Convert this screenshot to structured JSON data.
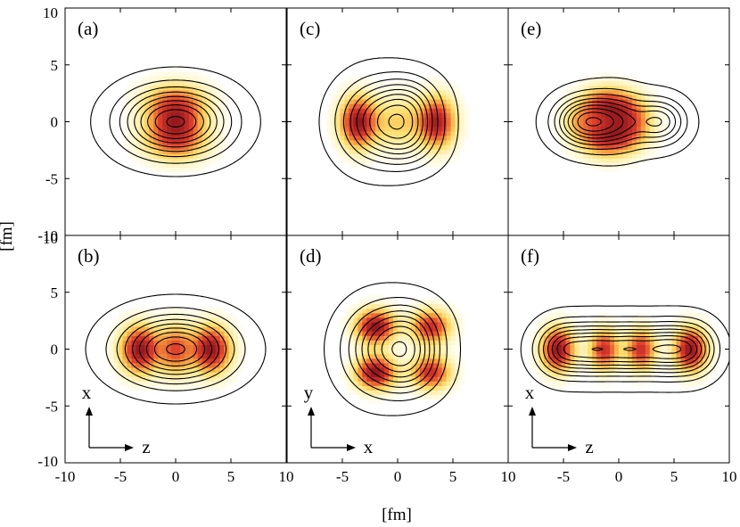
{
  "figure": {
    "xlabel": "[fm]",
    "ylabel": "[fm]"
  },
  "chart_data": [
    {
      "type": "heatmap",
      "panel_label": "(a)",
      "xlim": [
        -10,
        10
      ],
      "ylim": [
        -10,
        10
      ],
      "xticks": [
        "-10",
        "-5",
        "0",
        "5",
        "10"
      ],
      "yticks": [
        "-10",
        "-5",
        "0",
        "5",
        "10"
      ],
      "density": [
        {
          "x": 0,
          "y": 1.6,
          "sx": 1.9,
          "sy": 1.2,
          "w": 0.85
        },
        {
          "x": 0,
          "y": -1.6,
          "sx": 1.9,
          "sy": 1.2,
          "w": 0.85
        },
        {
          "x": 0,
          "y": 0,
          "sx": 1.6,
          "sy": 1.0,
          "w": 0.55
        }
      ],
      "contours": [
        {
          "x": -1.6,
          "y": 0,
          "sx": 2.6,
          "sy": 1.9,
          "w": 1
        },
        {
          "x": 1.6,
          "y": 0,
          "sx": 2.6,
          "sy": 1.9,
          "w": 1
        }
      ],
      "axes_marker": null
    },
    {
      "type": "heatmap",
      "panel_label": "(b)",
      "xlim": [
        -10,
        10
      ],
      "ylim": [
        -10,
        10
      ],
      "xticks": [
        "-10",
        "-5",
        "0",
        "5",
        "10"
      ],
      "yticks": [
        "-10",
        "-5",
        "0",
        "5",
        "10"
      ],
      "density": [
        {
          "x": -3.2,
          "y": 0,
          "sx": 1.2,
          "sy": 1.4,
          "w": 1
        },
        {
          "x": 3.2,
          "y": 0,
          "sx": 1.2,
          "sy": 1.4,
          "w": 1
        },
        {
          "x": 0,
          "y": 0,
          "sx": 1.0,
          "sy": 1.5,
          "w": 0.65
        }
      ],
      "contours": [
        {
          "x": -1.6,
          "y": 0,
          "sx": 2.8,
          "sy": 1.9,
          "w": 1
        },
        {
          "x": 1.6,
          "y": 0,
          "sx": 2.8,
          "sy": 1.9,
          "w": 1
        }
      ],
      "axes_marker": {
        "vertical": "x",
        "horizontal": "z"
      }
    },
    {
      "type": "heatmap",
      "panel_label": "(c)",
      "xlim": [
        -10,
        10
      ],
      "ylim": [
        -10,
        10
      ],
      "xticks": [
        "-10",
        "-5",
        "0",
        "5",
        "10"
      ],
      "yticks": [
        "-10",
        "-5",
        "0",
        "5",
        "10"
      ],
      "density": [
        {
          "x": -3.6,
          "y": 0,
          "sx": 1.1,
          "sy": 1.5,
          "w": 1
        },
        {
          "x": 3.6,
          "y": 0,
          "sx": 1.1,
          "sy": 1.5,
          "w": 0.9
        },
        {
          "x": 0.2,
          "y": 0,
          "sx": 2.0,
          "sy": 1.6,
          "w": 0.35
        }
      ],
      "contours": [
        {
          "x": -2.2,
          "y": 0,
          "sx": 2.1,
          "sy": 2.3,
          "w": 1
        },
        {
          "x": 0.9,
          "y": 1.4,
          "sx": 1.9,
          "sy": 1.7,
          "w": 0.85
        },
        {
          "x": 0.9,
          "y": -1.4,
          "sx": 1.9,
          "sy": 1.7,
          "w": 0.85
        }
      ],
      "axes_marker": null
    },
    {
      "type": "heatmap",
      "panel_label": "(d)",
      "xlim": [
        -10,
        10
      ],
      "ylim": [
        -10,
        10
      ],
      "xticks": [
        "-10",
        "-5",
        "0",
        "5",
        "10"
      ],
      "yticks": [
        "-10",
        "-5",
        "0",
        "5",
        "10"
      ],
      "density": [
        {
          "x": -2.0,
          "y": 2.0,
          "sx": 1.2,
          "sy": 1.0,
          "w": 1
        },
        {
          "x": -2.0,
          "y": -2.0,
          "sx": 1.2,
          "sy": 1.0,
          "w": 1
        },
        {
          "x": 3.0,
          "y": 2.0,
          "sx": 1.2,
          "sy": 1.0,
          "w": 0.8
        },
        {
          "x": 3.0,
          "y": -2.0,
          "sx": 1.2,
          "sy": 1.0,
          "w": 0.8
        }
      ],
      "contours": [
        {
          "x": -1.8,
          "y": 0,
          "sx": 2.1,
          "sy": 2.4,
          "w": 1
        },
        {
          "x": 1.1,
          "y": 1.4,
          "sx": 1.9,
          "sy": 1.8,
          "w": 0.85
        },
        {
          "x": 1.1,
          "y": -1.4,
          "sx": 1.9,
          "sy": 1.8,
          "w": 0.85
        }
      ],
      "axes_marker": {
        "vertical": "y",
        "horizontal": "x"
      }
    },
    {
      "type": "heatmap",
      "panel_label": "(e)",
      "xlim": [
        -10,
        10
      ],
      "ylim": [
        -10,
        10
      ],
      "xticks": [
        "-10",
        "-5",
        "0",
        "5",
        "10"
      ],
      "yticks": [
        "-10",
        "-5",
        "0",
        "5",
        "10"
      ],
      "density": [
        {
          "x": -1.0,
          "y": 1.4,
          "sx": 1.7,
          "sy": 1.1,
          "w": 0.9
        },
        {
          "x": -1.0,
          "y": -1.4,
          "sx": 1.7,
          "sy": 1.1,
          "w": 0.9
        },
        {
          "x": 1.2,
          "y": 0,
          "sx": 1.3,
          "sy": 1.3,
          "w": 0.55
        },
        {
          "x": -3.6,
          "y": 0,
          "sx": 1.0,
          "sy": 1.0,
          "w": 0.3
        }
      ],
      "contours": [
        {
          "x": -3.4,
          "y": 0,
          "sx": 1.7,
          "sy": 1.4,
          "w": 1
        },
        {
          "x": -0.4,
          "y": 0,
          "sx": 2.0,
          "sy": 1.6,
          "w": 1
        },
        {
          "x": 3.8,
          "y": 0,
          "sx": 1.5,
          "sy": 1.3,
          "w": 0.8
        }
      ],
      "axes_marker": null
    },
    {
      "type": "heatmap",
      "panel_label": "(f)",
      "xlim": [
        -10,
        10
      ],
      "ylim": [
        -10,
        10
      ],
      "xticks": [
        "-10",
        "-5",
        "0",
        "5",
        "10"
      ],
      "yticks": [
        "-10",
        "-5",
        "0",
        "5",
        "10"
      ],
      "density": [
        {
          "x": -5.5,
          "y": 0,
          "sx": 1.0,
          "sy": 1.3,
          "w": 1
        },
        {
          "x": 6.5,
          "y": 0,
          "sx": 1.0,
          "sy": 1.3,
          "w": 1
        },
        {
          "x": -1.3,
          "y": 0,
          "sx": 0.9,
          "sy": 1.2,
          "w": 0.8
        },
        {
          "x": 2.0,
          "y": 0,
          "sx": 0.9,
          "sy": 1.2,
          "w": 0.8
        }
      ],
      "contours": [
        {
          "x": -5.0,
          "y": 0,
          "sx": 1.6,
          "sy": 1.5,
          "w": 1
        },
        {
          "x": -2.0,
          "y": 0,
          "sx": 1.6,
          "sy": 1.5,
          "w": 1
        },
        {
          "x": 1.0,
          "y": 0,
          "sx": 1.6,
          "sy": 1.5,
          "w": 1
        },
        {
          "x": 4.0,
          "y": 0,
          "sx": 1.6,
          "sy": 1.5,
          "w": 1
        },
        {
          "x": 6.6,
          "y": 0,
          "sx": 1.5,
          "sy": 1.5,
          "w": 0.9
        }
      ],
      "axes_marker": {
        "vertical": "x",
        "horizontal": "z"
      }
    }
  ]
}
